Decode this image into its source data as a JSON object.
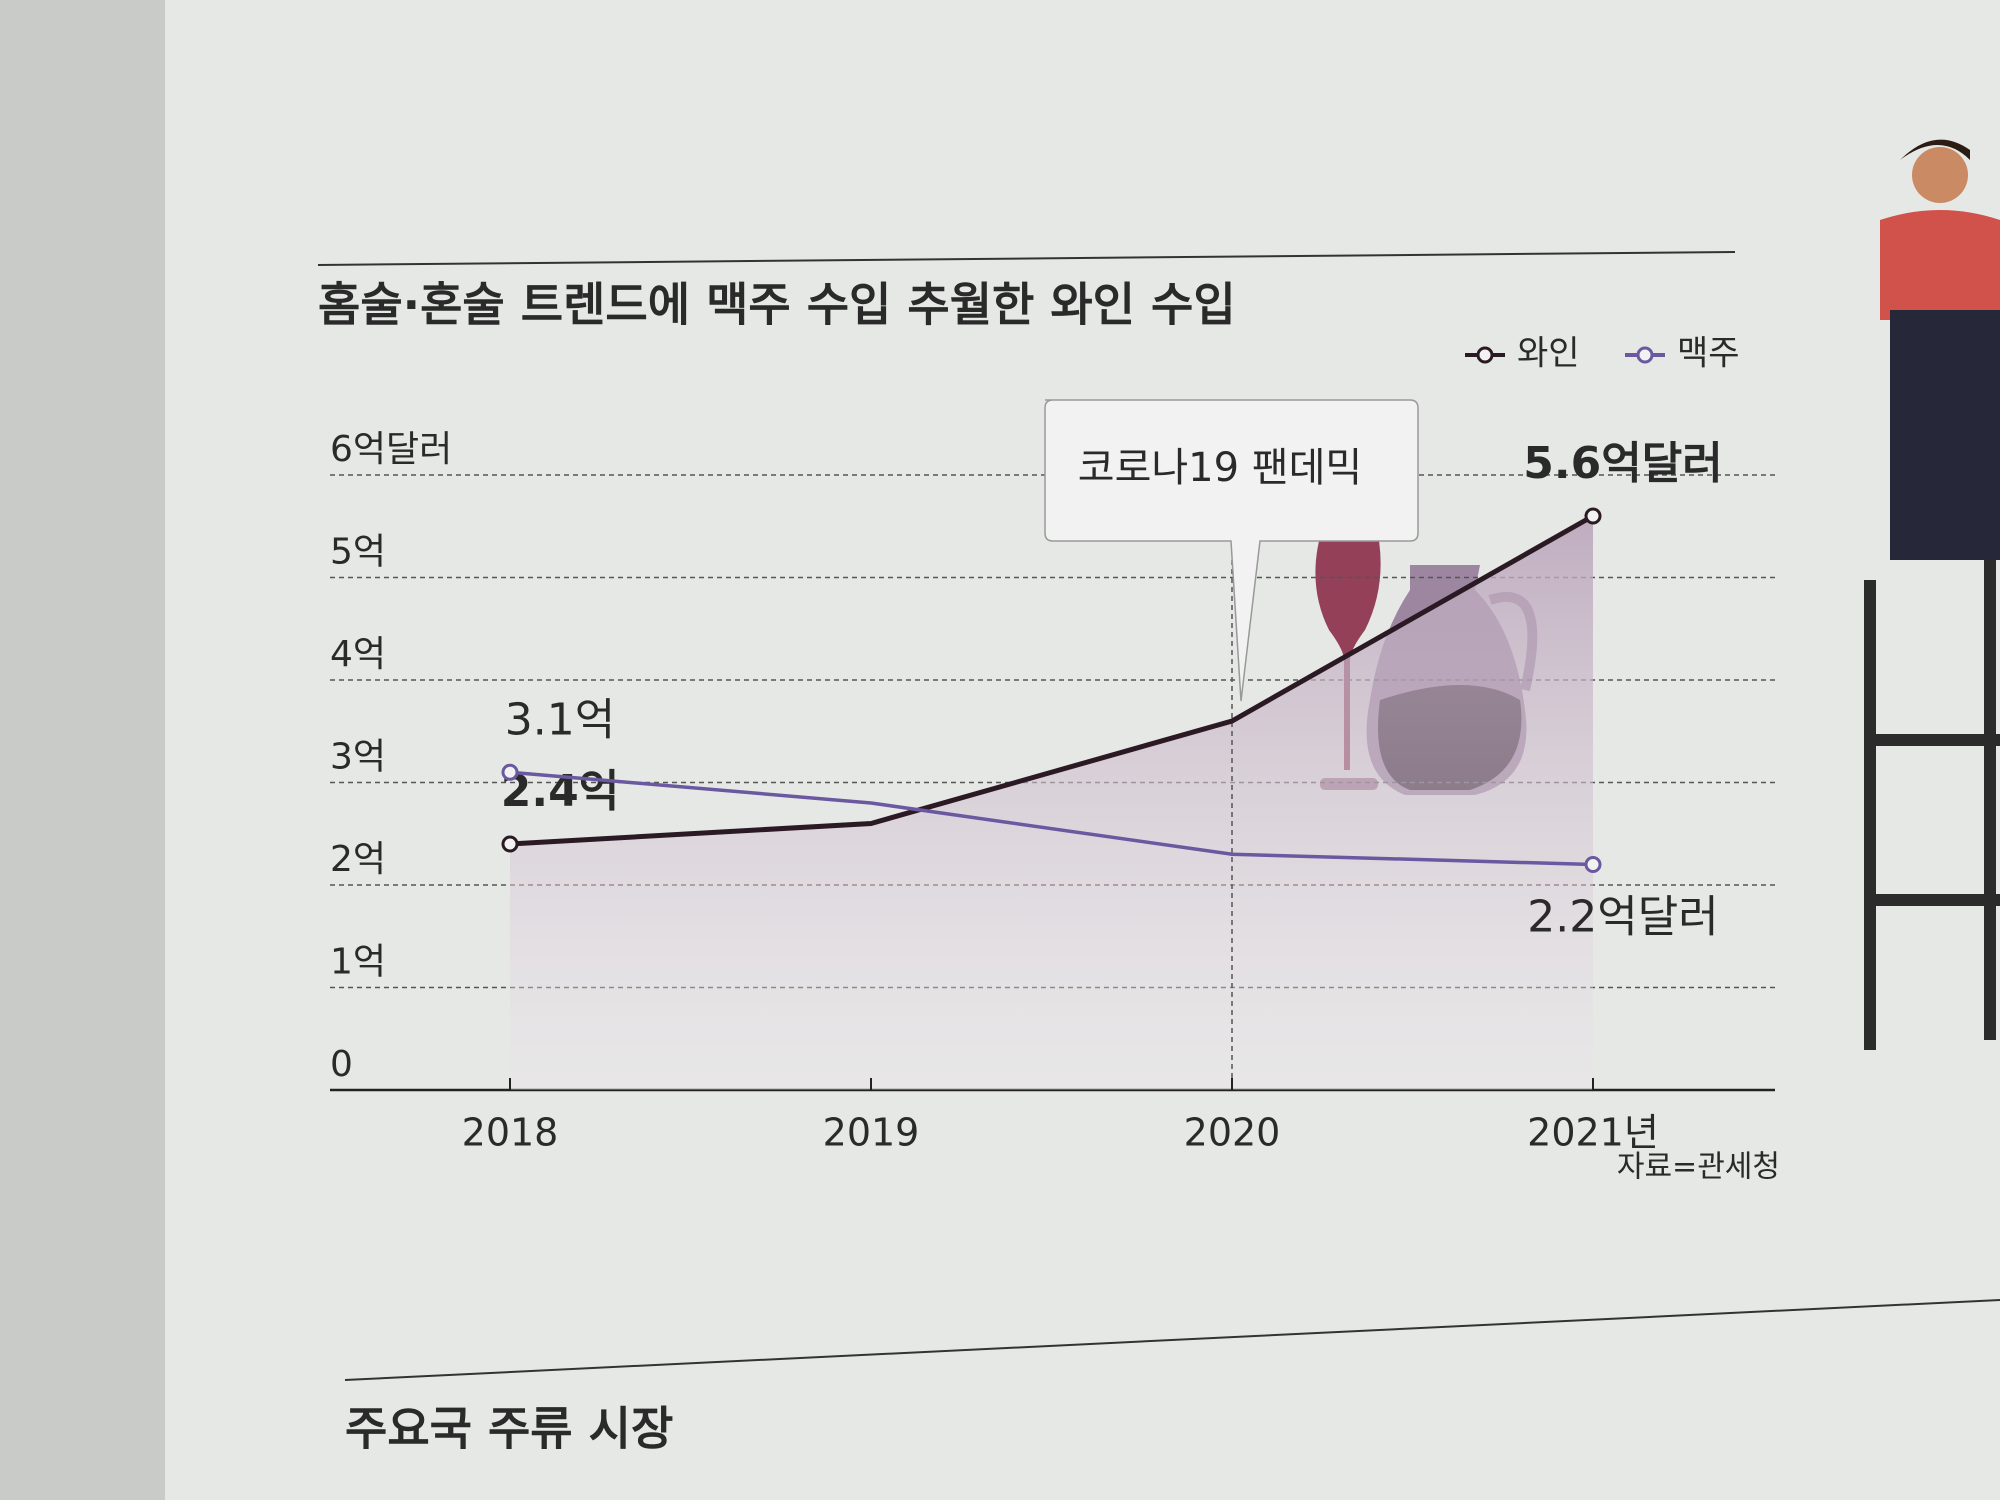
{
  "chart_data": {
    "type": "line",
    "title": "홈술·혼술 트렌드에 맥주 수입 추월한 와인 수입",
    "categories": [
      "2018",
      "2019",
      "2020",
      "2021년"
    ],
    "series": [
      {
        "name": "와인",
        "color": "#2b1a24",
        "values": [
          2.4,
          2.6,
          3.6,
          5.6
        ],
        "value_labels": [
          "2.4억",
          null,
          null,
          "5.6억달러"
        ]
      },
      {
        "name": "맥주",
        "color": "#6a58a0",
        "values": [
          3.1,
          2.8,
          2.3,
          2.2
        ],
        "value_labels": [
          "3.1억",
          null,
          null,
          "2.2억달러"
        ]
      }
    ],
    "ylim": [
      0,
      6
    ],
    "yticks": [
      0,
      {
        "value": 1,
        "label": "1억"
      },
      {
        "value": 2,
        "label": "2억"
      },
      {
        "value": 3,
        "label": "3억"
      },
      {
        "value": 4,
        "label": "4억"
      },
      {
        "value": 5,
        "label": "5억"
      },
      {
        "value": 6,
        "label": "6억달러"
      }
    ],
    "grid": true,
    "legend": "top-right",
    "annotation": {
      "text": "코로나19 팬데믹",
      "category": 2
    },
    "source": "자료=관세청",
    "next_section_title": "주요국 주류 시장"
  }
}
